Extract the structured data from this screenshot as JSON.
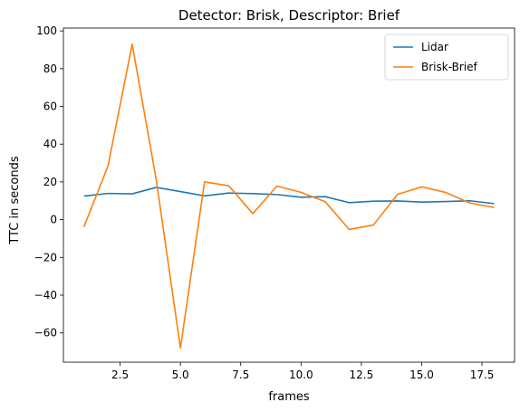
{
  "chart_data": {
    "type": "line",
    "title": "Detector: Brisk, Descriptor: Brief",
    "xlabel": "frames",
    "ylabel": "TTC in seconds",
    "xlim": [
      0.15,
      18.85
    ],
    "ylim": [
      -75.5,
      101.5
    ],
    "xticks": [
      2.5,
      5.0,
      7.5,
      10.0,
      12.5,
      15.0,
      17.5
    ],
    "xtick_labels": [
      "2.5",
      "5.0",
      "7.5",
      "10.0",
      "12.5",
      "15.0",
      "17.5"
    ],
    "yticks": [
      -60,
      -40,
      -20,
      0,
      20,
      40,
      60,
      80,
      100
    ],
    "ytick_labels": [
      "−60",
      "−40",
      "−20",
      "0",
      "20",
      "40",
      "60",
      "80",
      "100"
    ],
    "grid": false,
    "legend_position": "top-right",
    "x": [
      1,
      2,
      3,
      4,
      5,
      6,
      7,
      8,
      9,
      10,
      11,
      12,
      13,
      14,
      15,
      16,
      17,
      18
    ],
    "series": [
      {
        "name": "Lidar",
        "color": "#1f77b4",
        "values": [
          12.5,
          13.9,
          13.7,
          17.1,
          14.9,
          12.6,
          14.1,
          13.8,
          13.3,
          11.9,
          12.2,
          9.0,
          9.8,
          9.9,
          9.3,
          9.6,
          10.0,
          8.5
        ]
      },
      {
        "name": "Brisk-Brief",
        "color": "#ff7f0e",
        "values": [
          -3.8,
          28.5,
          93.0,
          21.0,
          -68.0,
          20.0,
          18.0,
          3.2,
          17.8,
          14.5,
          9.5,
          -5.2,
          -2.8,
          13.4,
          17.4,
          14.4,
          8.8,
          6.5
        ]
      }
    ]
  }
}
